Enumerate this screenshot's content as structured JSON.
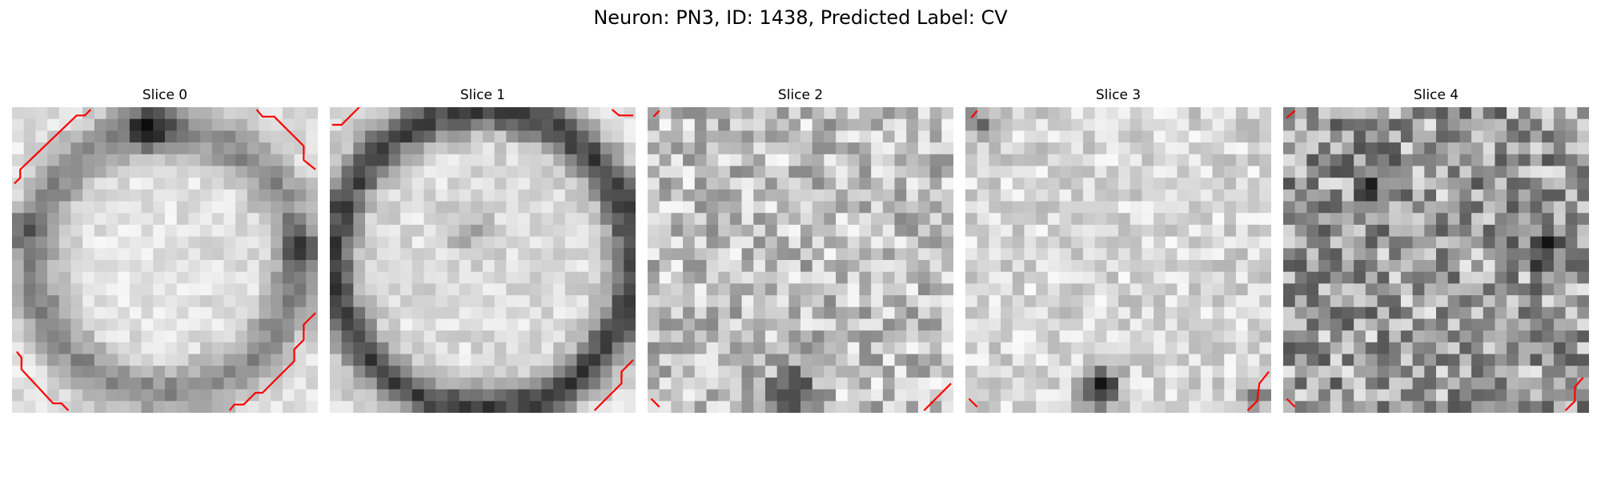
{
  "figure": {
    "title": "Neuron: PN3, ID: 1438, Predicted Label: CV",
    "slices": [
      {
        "label": "Slice 0",
        "pattern": "ring",
        "seed": 11
      },
      {
        "label": "Slice 1",
        "pattern": "dark-ring",
        "seed": 23
      },
      {
        "label": "Slice 2",
        "pattern": "noise-bottom-blob",
        "seed": 37
      },
      {
        "label": "Slice 3",
        "pattern": "light-bottom-blob",
        "seed": 41
      },
      {
        "label": "Slice 4",
        "pattern": "dark-noise",
        "seed": 59
      }
    ],
    "contour_color": "#ff0000"
  }
}
